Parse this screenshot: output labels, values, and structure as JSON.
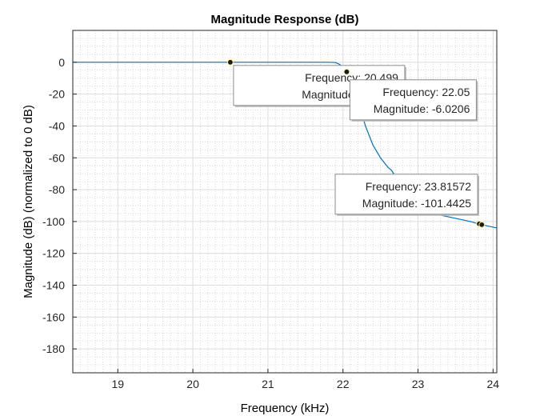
{
  "chart_data": {
    "type": "line",
    "title": "Magnitude Response (dB)",
    "xlabel": "Frequency (kHz)",
    "ylabel": "Magnitude (dB) (normalized to 0 dB)",
    "xlim": [
      18.4,
      24.05
    ],
    "ylim": [
      -195,
      20
    ],
    "xticks": [
      19,
      20,
      21,
      22,
      23,
      24
    ],
    "yticks": [
      0,
      -20,
      -40,
      -60,
      -80,
      -100,
      -120,
      -140,
      -160,
      -180
    ],
    "grid": true,
    "minor_grid": true,
    "series": [
      {
        "color": "#0072BD",
        "x": [
          18.4,
          19.0,
          20.0,
          20.5,
          21.0,
          21.5,
          21.8,
          21.9,
          21.95,
          22.0,
          22.05,
          22.1,
          22.2,
          22.3,
          22.4,
          22.5,
          22.6,
          22.65,
          22.7,
          22.8,
          22.9,
          23.0,
          23.1,
          23.2,
          23.3,
          23.4,
          23.5,
          23.6,
          23.7,
          23.8,
          23.85,
          23.9,
          24.0,
          24.05
        ],
        "y": [
          0,
          0,
          0,
          0,
          0,
          0,
          0,
          -0.2,
          -1.2,
          -3.0,
          -6.0,
          -12,
          -24,
          -40,
          -52,
          -60,
          -66,
          -68,
          -72,
          -78,
          -84,
          -88,
          -92,
          -94,
          -96,
          -97,
          -98,
          -99,
          -100,
          -101.4,
          -102,
          -102.5,
          -103.5,
          -104
        ]
      }
    ],
    "datatips": [
      {
        "x": 20.499,
        "y": -0.0001,
        "lines": [
          "Frequency: 20.499",
          "Magnitude: -0.0001"
        ]
      },
      {
        "x": 22.05,
        "y": -6.0206,
        "lines": [
          "Frequency: 22.05",
          "Magnitude: -6.0206"
        ]
      },
      {
        "x": 23.81572,
        "y": -101.4425,
        "lines": [
          "Frequency: 23.81572",
          "Magnitude: -101.4425"
        ]
      },
      {
        "x": 23.85,
        "y": -102
      }
    ]
  }
}
